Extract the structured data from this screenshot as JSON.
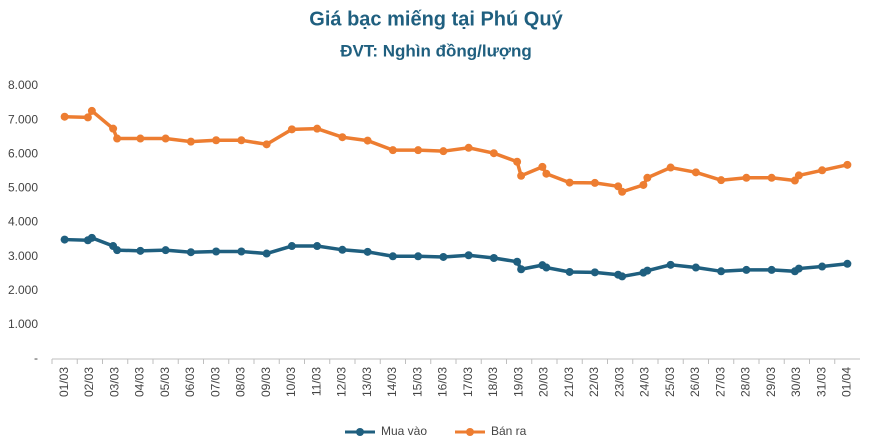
{
  "chart_data": {
    "type": "line",
    "title": "Giá bạc miếng tại Phú Quý",
    "subtitle": "ĐVT: Nghìn đồng/lượng",
    "x": [
      "01/03",
      "02/03",
      "02/03",
      "03/03",
      "03/03",
      "04/03",
      "05/03",
      "06/03",
      "07/03",
      "08/03",
      "09/03",
      "10/03",
      "11/03",
      "12/03",
      "13/03",
      "14/03",
      "15/03",
      "16/03",
      "17/03",
      "18/03",
      "19/03",
      "19/03",
      "20/03",
      "20/03",
      "21/03",
      "22/03",
      "23/03",
      "23/03",
      "24/03",
      "24/03",
      "25/03",
      "26/03",
      "27/03",
      "28/03",
      "29/03",
      "30/03",
      "30/03",
      "31/03",
      "01/04"
    ],
    "series": [
      {
        "name": "Mua vào",
        "color": "#1f5f7f",
        "values": [
          3500,
          3480,
          3550,
          3310,
          3190,
          3170,
          3190,
          3130,
          3150,
          3150,
          3090,
          3310,
          3310,
          3200,
          3140,
          3010,
          3010,
          2990,
          3040,
          2960,
          2850,
          2630,
          2750,
          2680,
          2550,
          2540,
          2470,
          2420,
          2530,
          2590,
          2760,
          2680,
          2570,
          2610,
          2610,
          2570,
          2650,
          2710,
          2790
        ]
      },
      {
        "name": "Bán ra",
        "color": "#ed7d31",
        "values": [
          7100,
          7080,
          7270,
          6750,
          6460,
          6460,
          6460,
          6370,
          6410,
          6410,
          6290,
          6730,
          6750,
          6500,
          6400,
          6120,
          6120,
          6090,
          6190,
          6030,
          5780,
          5370,
          5630,
          5430,
          5170,
          5160,
          5060,
          4900,
          5100,
          5310,
          5610,
          5470,
          5240,
          5310,
          5310,
          5230,
          5380,
          5530,
          5690
        ]
      }
    ],
    "ylim": [
      0,
      8000
    ],
    "yticks": [
      {
        "value": 0,
        "label": "-"
      },
      {
        "value": 1000,
        "label": "1.000"
      },
      {
        "value": 2000,
        "label": "2.000"
      },
      {
        "value": 3000,
        "label": "3.000"
      },
      {
        "value": 4000,
        "label": "4.000"
      },
      {
        "value": 5000,
        "label": "5.000"
      },
      {
        "value": 6000,
        "label": "6.000"
      },
      {
        "value": 7000,
        "label": "7.000"
      },
      {
        "value": 8000,
        "label": "8.000"
      }
    ],
    "grid": false,
    "legend": "bottom"
  }
}
